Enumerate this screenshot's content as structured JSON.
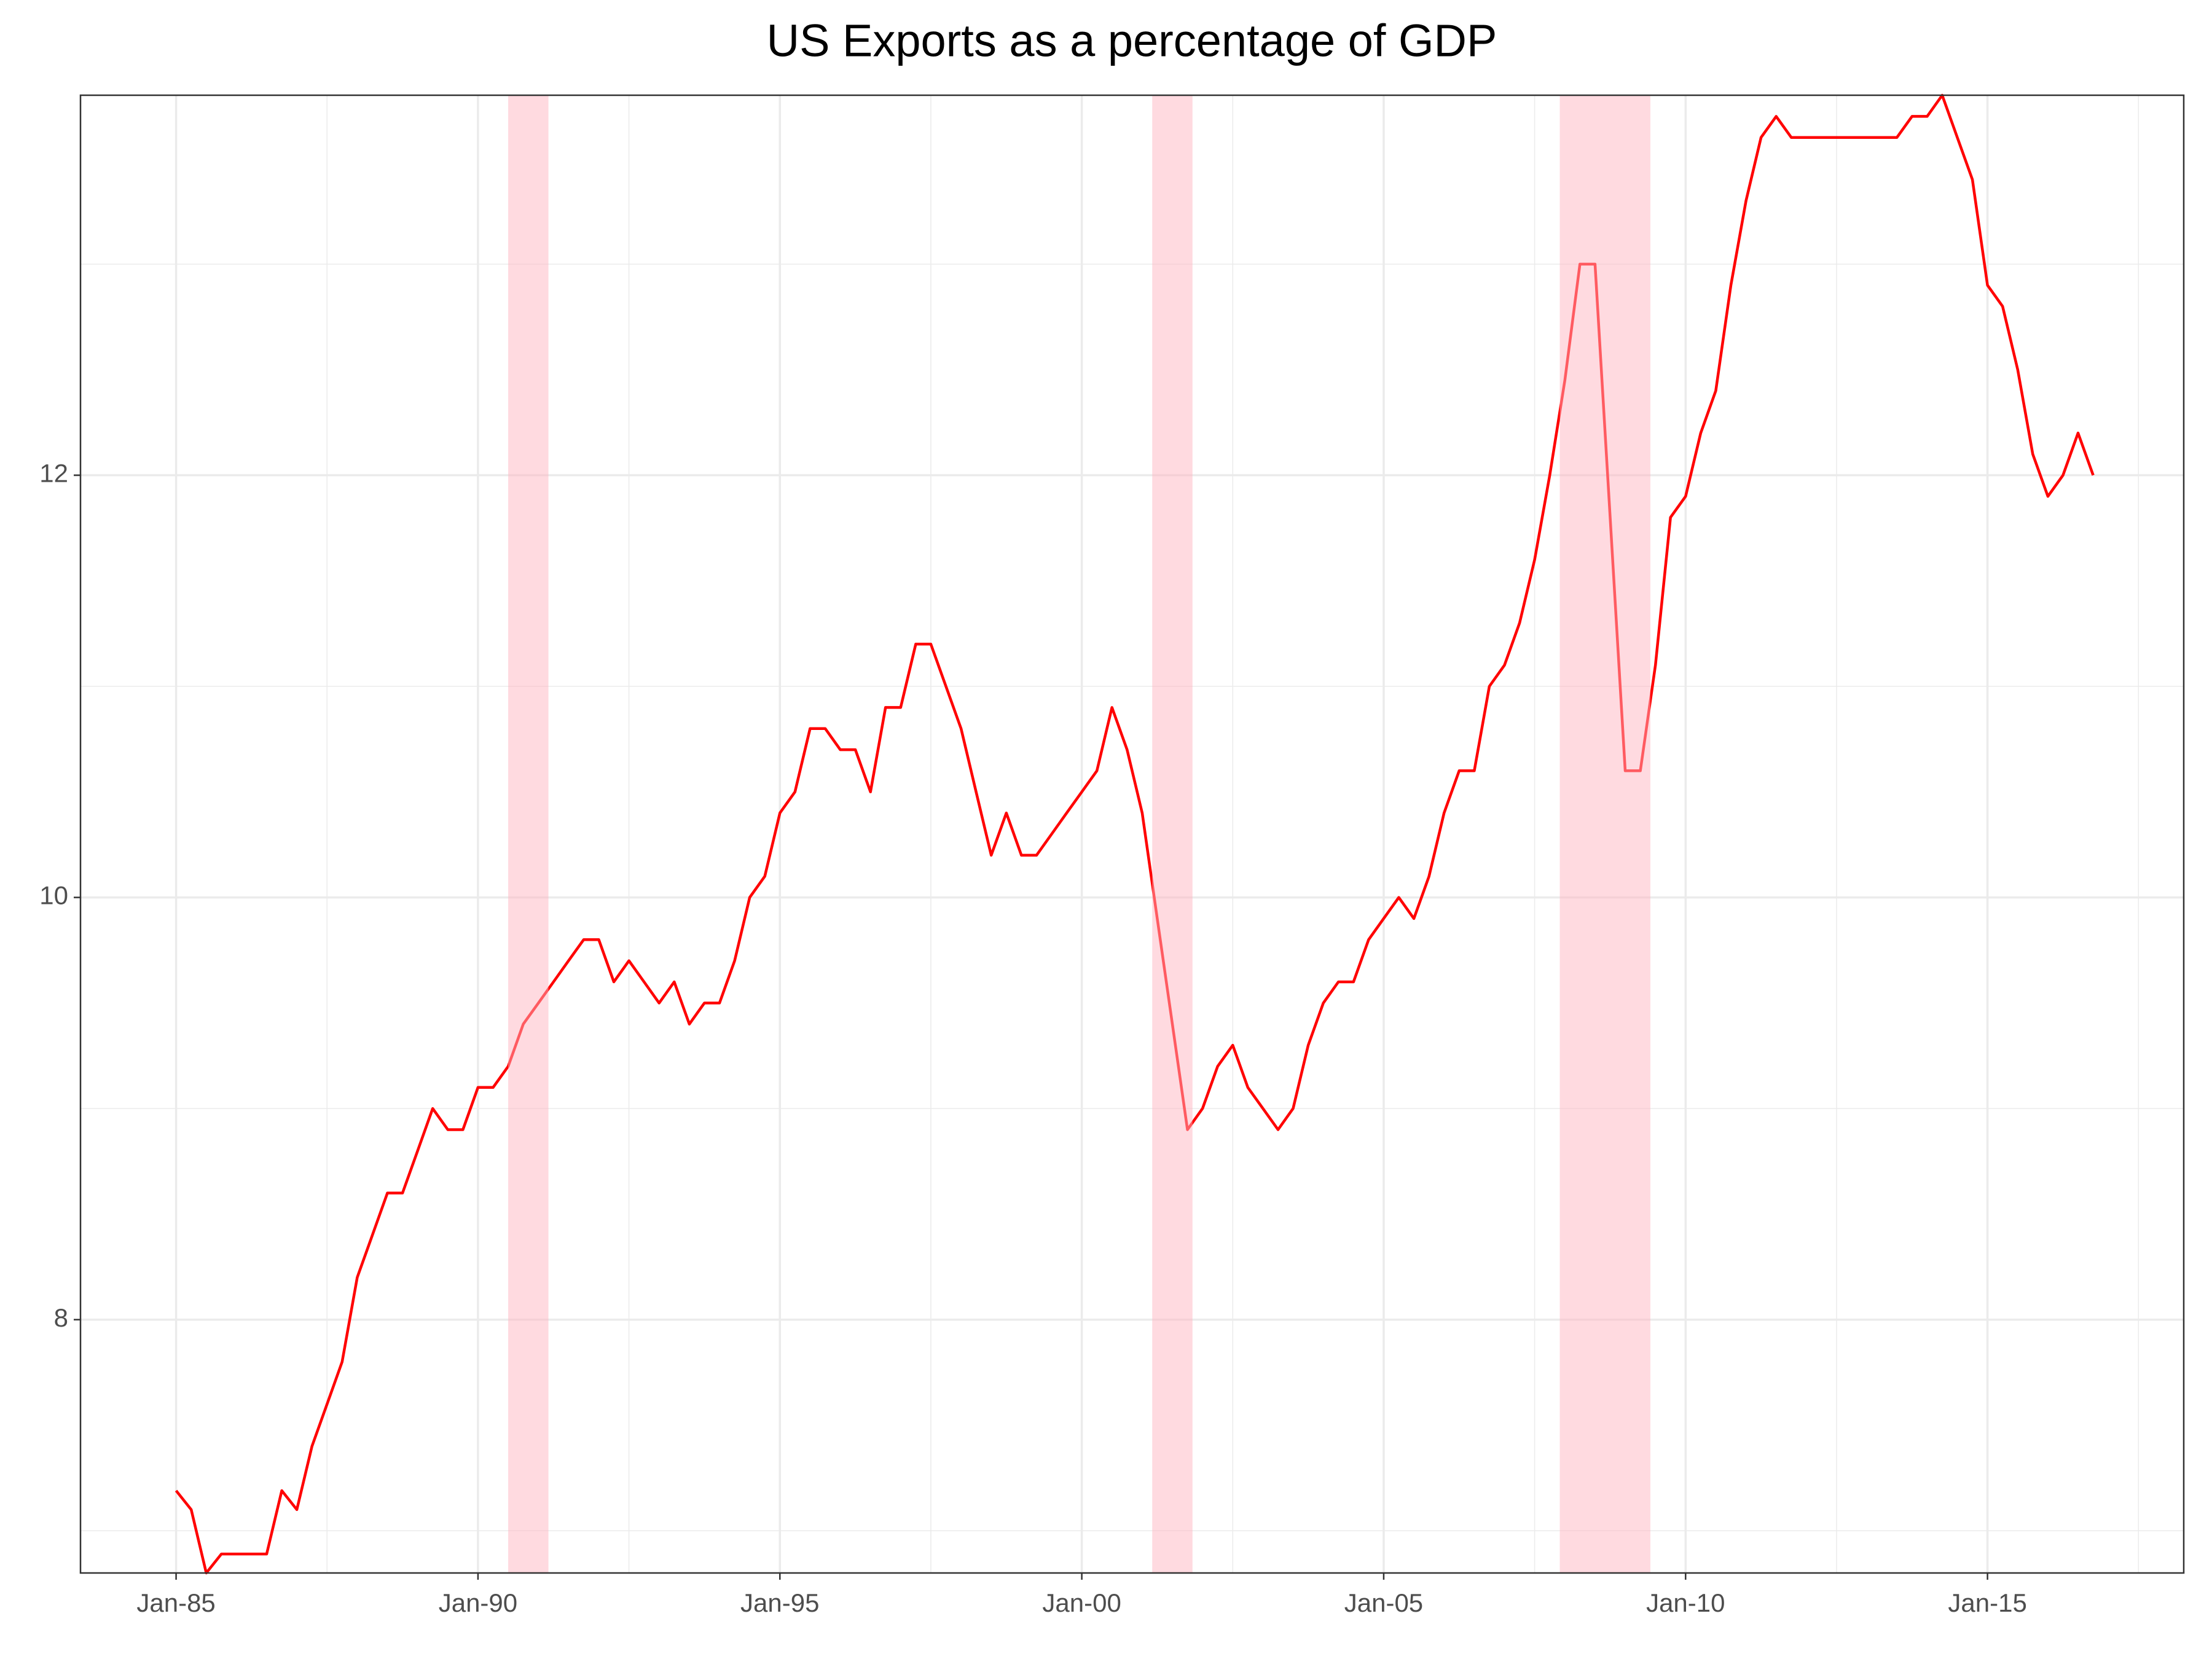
{
  "chart_data": {
    "type": "line",
    "title": "US Exports as a percentage of GDP",
    "x": [
      "1985-01",
      "1985-04",
      "1985-07",
      "1985-10",
      "1986-01",
      "1986-04",
      "1986-07",
      "1986-10",
      "1987-01",
      "1987-04",
      "1987-07",
      "1987-10",
      "1988-01",
      "1988-04",
      "1988-07",
      "1988-10",
      "1989-01",
      "1989-04",
      "1989-07",
      "1989-10",
      "1990-01",
      "1990-04",
      "1990-07",
      "1990-10",
      "1991-01",
      "1991-04",
      "1991-07",
      "1991-10",
      "1992-01",
      "1992-04",
      "1992-07",
      "1992-10",
      "1993-01",
      "1993-04",
      "1993-07",
      "1993-10",
      "1994-01",
      "1994-04",
      "1994-07",
      "1994-10",
      "1995-01",
      "1995-04",
      "1995-07",
      "1995-10",
      "1996-01",
      "1996-04",
      "1996-07",
      "1996-10",
      "1997-01",
      "1997-04",
      "1997-07",
      "1997-10",
      "1998-01",
      "1998-04",
      "1998-07",
      "1998-10",
      "1999-01",
      "1999-04",
      "1999-07",
      "1999-10",
      "2000-01",
      "2000-04",
      "2000-07",
      "2000-10",
      "2001-01",
      "2001-04",
      "2001-07",
      "2001-10",
      "2002-01",
      "2002-04",
      "2002-07",
      "2002-10",
      "2003-01",
      "2003-04",
      "2003-07",
      "2003-10",
      "2004-01",
      "2004-04",
      "2004-07",
      "2004-10",
      "2005-01",
      "2005-04",
      "2005-07",
      "2005-10",
      "2006-01",
      "2006-04",
      "2006-07",
      "2006-10",
      "2007-01",
      "2007-04",
      "2007-07",
      "2007-10",
      "2008-01",
      "2008-04",
      "2008-07",
      "2008-10",
      "2009-01",
      "2009-04",
      "2009-07",
      "2009-10",
      "2010-01",
      "2010-04",
      "2010-07",
      "2010-10",
      "2011-01",
      "2011-04",
      "2011-07",
      "2011-10",
      "2012-01",
      "2012-04",
      "2012-07",
      "2012-10",
      "2013-01",
      "2013-04",
      "2013-07",
      "2013-10",
      "2014-01",
      "2014-04",
      "2014-07",
      "2014-10",
      "2015-01",
      "2015-04",
      "2015-07",
      "2015-10",
      "2016-01",
      "2016-04",
      "2016-07",
      "2016-10"
    ],
    "values": [
      7.19,
      7.1,
      6.8,
      6.89,
      6.89,
      6.89,
      6.89,
      7.19,
      7.1,
      7.4,
      7.6,
      7.8,
      8.2,
      8.4,
      8.6,
      8.6,
      8.8,
      9.0,
      8.9,
      8.9,
      9.1,
      9.1,
      9.2,
      9.4,
      9.5,
      9.6,
      9.7,
      9.8,
      9.8,
      9.6,
      9.7,
      9.6,
      9.5,
      9.6,
      9.4,
      9.5,
      9.5,
      9.7,
      10.0,
      10.1,
      10.4,
      10.5,
      10.8,
      10.8,
      10.7,
      10.7,
      10.5,
      10.9,
      10.9,
      11.2,
      11.2,
      11.0,
      10.8,
      10.5,
      10.2,
      10.4,
      10.2,
      10.2,
      10.3,
      10.4,
      10.5,
      10.6,
      10.9,
      10.7,
      10.4,
      9.9,
      9.4,
      8.9,
      9.0,
      9.2,
      9.3,
      9.1,
      9.0,
      8.9,
      9.0,
      9.3,
      9.5,
      9.6,
      9.6,
      9.8,
      9.9,
      10.0,
      9.9,
      10.1,
      10.4,
      10.6,
      10.6,
      11.0,
      11.1,
      11.3,
      11.6,
      12.0,
      12.45,
      13.0,
      13.0,
      11.8,
      10.6,
      10.6,
      11.1,
      11.8,
      11.9,
      12.2,
      12.4,
      12.9,
      13.3,
      13.6,
      13.7,
      13.6,
      13.6,
      13.6,
      13.6,
      13.6,
      13.6,
      13.6,
      13.6,
      13.7,
      13.7,
      13.8,
      13.6,
      13.4,
      12.9,
      12.8,
      12.5,
      12.1,
      11.9,
      12.0,
      12.2,
      12.0
    ],
    "color": "#ff0000",
    "shaded_periods": [
      {
        "start": "1990-07",
        "end": "1991-03"
      },
      {
        "start": "2001-03",
        "end": "2001-11"
      },
      {
        "start": "2007-12",
        "end": "2009-06"
      }
    ],
    "shade_color": "#ffb6c1",
    "xlim": [
      "1983-06",
      "2018-04"
    ],
    "xticks": [
      {
        "value": "1985-01",
        "label": "Jan-85"
      },
      {
        "value": "1990-01",
        "label": "Jan-90"
      },
      {
        "value": "1995-01",
        "label": "Jan-95"
      },
      {
        "value": "2000-01",
        "label": "Jan-00"
      },
      {
        "value": "2005-01",
        "label": "Jan-05"
      },
      {
        "value": "2010-01",
        "label": "Jan-10"
      },
      {
        "value": "2015-01",
        "label": "Jan-15"
      }
    ],
    "ylim": [
      6.8,
      13.8
    ],
    "yticks": [
      8,
      10,
      12
    ],
    "grid": true
  }
}
